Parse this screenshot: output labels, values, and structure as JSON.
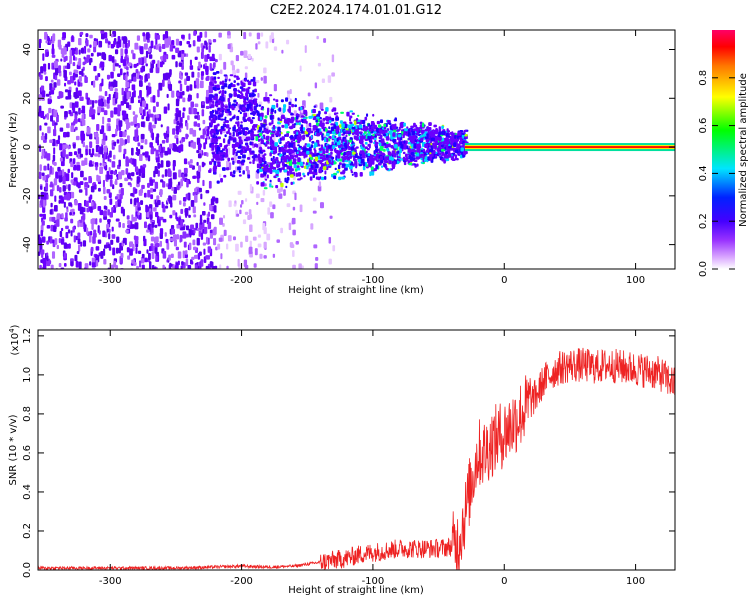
{
  "title": "C2E2.2024.174.01.01.G12",
  "chart_data": [
    {
      "type": "heatmap",
      "xlabel": "Height of straight line (km)",
      "ylabel": "Frequency (Hz)",
      "xlim": [
        -355,
        130
      ],
      "ylim": [
        -50,
        48
      ],
      "x_ticks": [
        -300,
        -200,
        -100,
        0,
        100
      ],
      "y_ticks": [
        -40,
        -20,
        0,
        20,
        40
      ],
      "colorbar": {
        "label": "Normalized spectral amplitude",
        "range": [
          0.0,
          1.0
        ],
        "ticks": [
          0.0,
          0.2,
          0.4,
          0.6,
          0.8
        ],
        "colors": [
          "#ffffff",
          "#cc66ff",
          "#6a00ff",
          "#0000ff",
          "#00e5ff",
          "#00ff00",
          "#ffff00",
          "#ff8800",
          "#ff0000",
          "#ff0066"
        ]
      },
      "signal_line": {
        "frequency": 0,
        "x_start": -30,
        "x_end": 130
      },
      "noise_region": {
        "x_start": -355,
        "x_end": -130
      }
    },
    {
      "type": "line",
      "xlabel": "Height of straight line (km)",
      "ylabel": "SNR (10 * v/v)",
      "y_multiplier": "(x10^4)",
      "xlim": [
        -355,
        130
      ],
      "ylim": [
        0,
        1.23
      ],
      "x_ticks": [
        -300,
        -200,
        -100,
        0,
        100
      ],
      "y_ticks": [
        0.0,
        0.2,
        0.4,
        0.6,
        0.8,
        1.0,
        1.2
      ],
      "color": "#ee2222",
      "series": [
        {
          "x": [
            -355,
            -300,
            -250,
            -220,
            -200,
            -180,
            -160,
            -150,
            -140,
            -130,
            -120,
            -110,
            -100,
            -90,
            -80,
            -70,
            -60,
            -50,
            -40,
            -35,
            -30,
            -25,
            -20,
            -15,
            -10,
            -5,
            0,
            5,
            10,
            15,
            20,
            25,
            30,
            40,
            50,
            60,
            70,
            80,
            90,
            100,
            110,
            120,
            130
          ],
          "y": [
            0.01,
            0.01,
            0.01,
            0.015,
            0.02,
            0.015,
            0.02,
            0.03,
            0.04,
            0.05,
            0.06,
            0.08,
            0.09,
            0.1,
            0.11,
            0.11,
            0.11,
            0.11,
            0.12,
            0.14,
            0.28,
            0.45,
            0.6,
            0.6,
            0.65,
            0.68,
            0.7,
            0.74,
            0.78,
            0.82,
            0.86,
            0.9,
            0.97,
            1.03,
            1.05,
            1.05,
            1.04,
            1.05,
            1.04,
            1.03,
            1.02,
            1.0,
            0.95
          ]
        }
      ]
    }
  ]
}
